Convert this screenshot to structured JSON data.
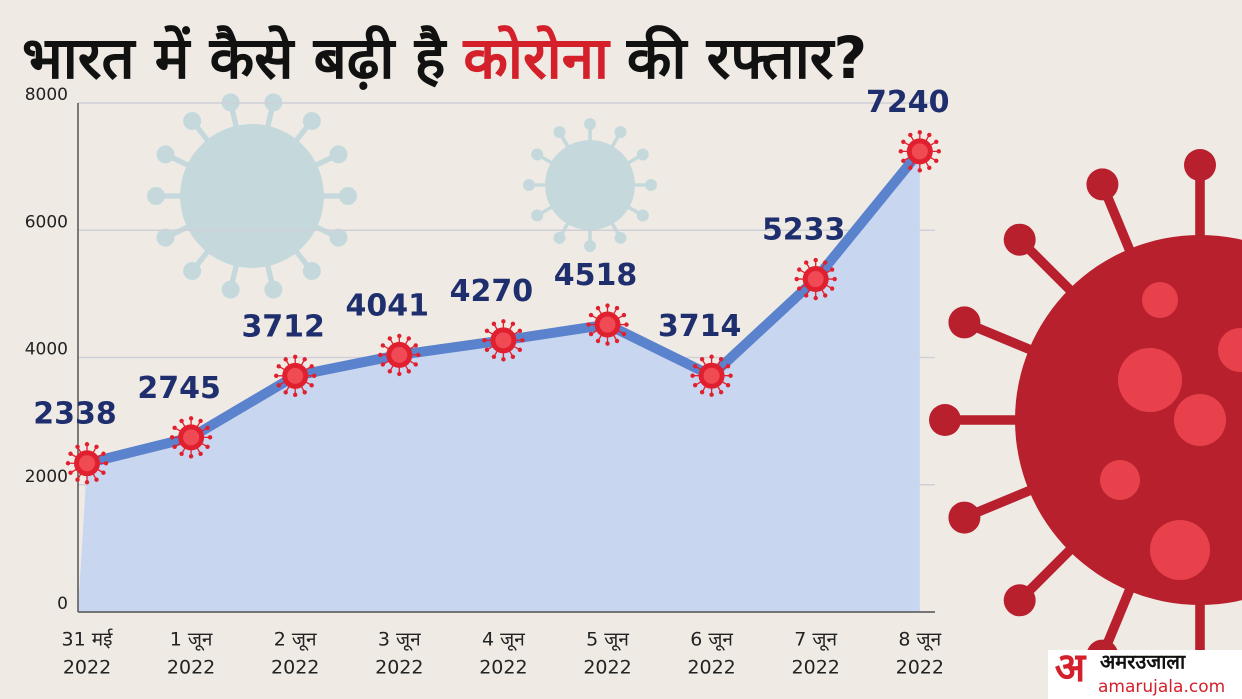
{
  "chart_data": {
    "type": "area-line",
    "title": [
      {
        "text": "भारत में कैसे बढ़ी है",
        "color": "#111111"
      },
      {
        "text": "कोरोना",
        "color": "#d3202a"
      },
      {
        "text": "की रफ्तार?",
        "color": "#111111"
      }
    ],
    "categories": [
      [
        "31 मई",
        "2022"
      ],
      [
        "1 जून",
        "2022"
      ],
      [
        "2 जून",
        "2022"
      ],
      [
        "3 जून",
        "2022"
      ],
      [
        "4 जून",
        "2022"
      ],
      [
        "5 जून",
        "2022"
      ],
      [
        "6 जून",
        "2022"
      ],
      [
        "7 जून",
        "2022"
      ],
      [
        "8 जून",
        "2022"
      ]
    ],
    "values": [
      2338,
      2745,
      3712,
      4041,
      4270,
      4518,
      3714,
      5233,
      7240
    ],
    "color": "#5b82cc",
    "fill": "#c9d6f0",
    "marker_color": "#e0202f",
    "label_color": "#1f2f6e",
    "ylim": [
      0,
      8000
    ],
    "yticks": [
      0,
      2000,
      4000,
      6000,
      8000
    ],
    "grid": true,
    "logo": {
      "mark": "अ",
      "name": "अमरउजाला",
      "url": "amarujala.com"
    }
  }
}
